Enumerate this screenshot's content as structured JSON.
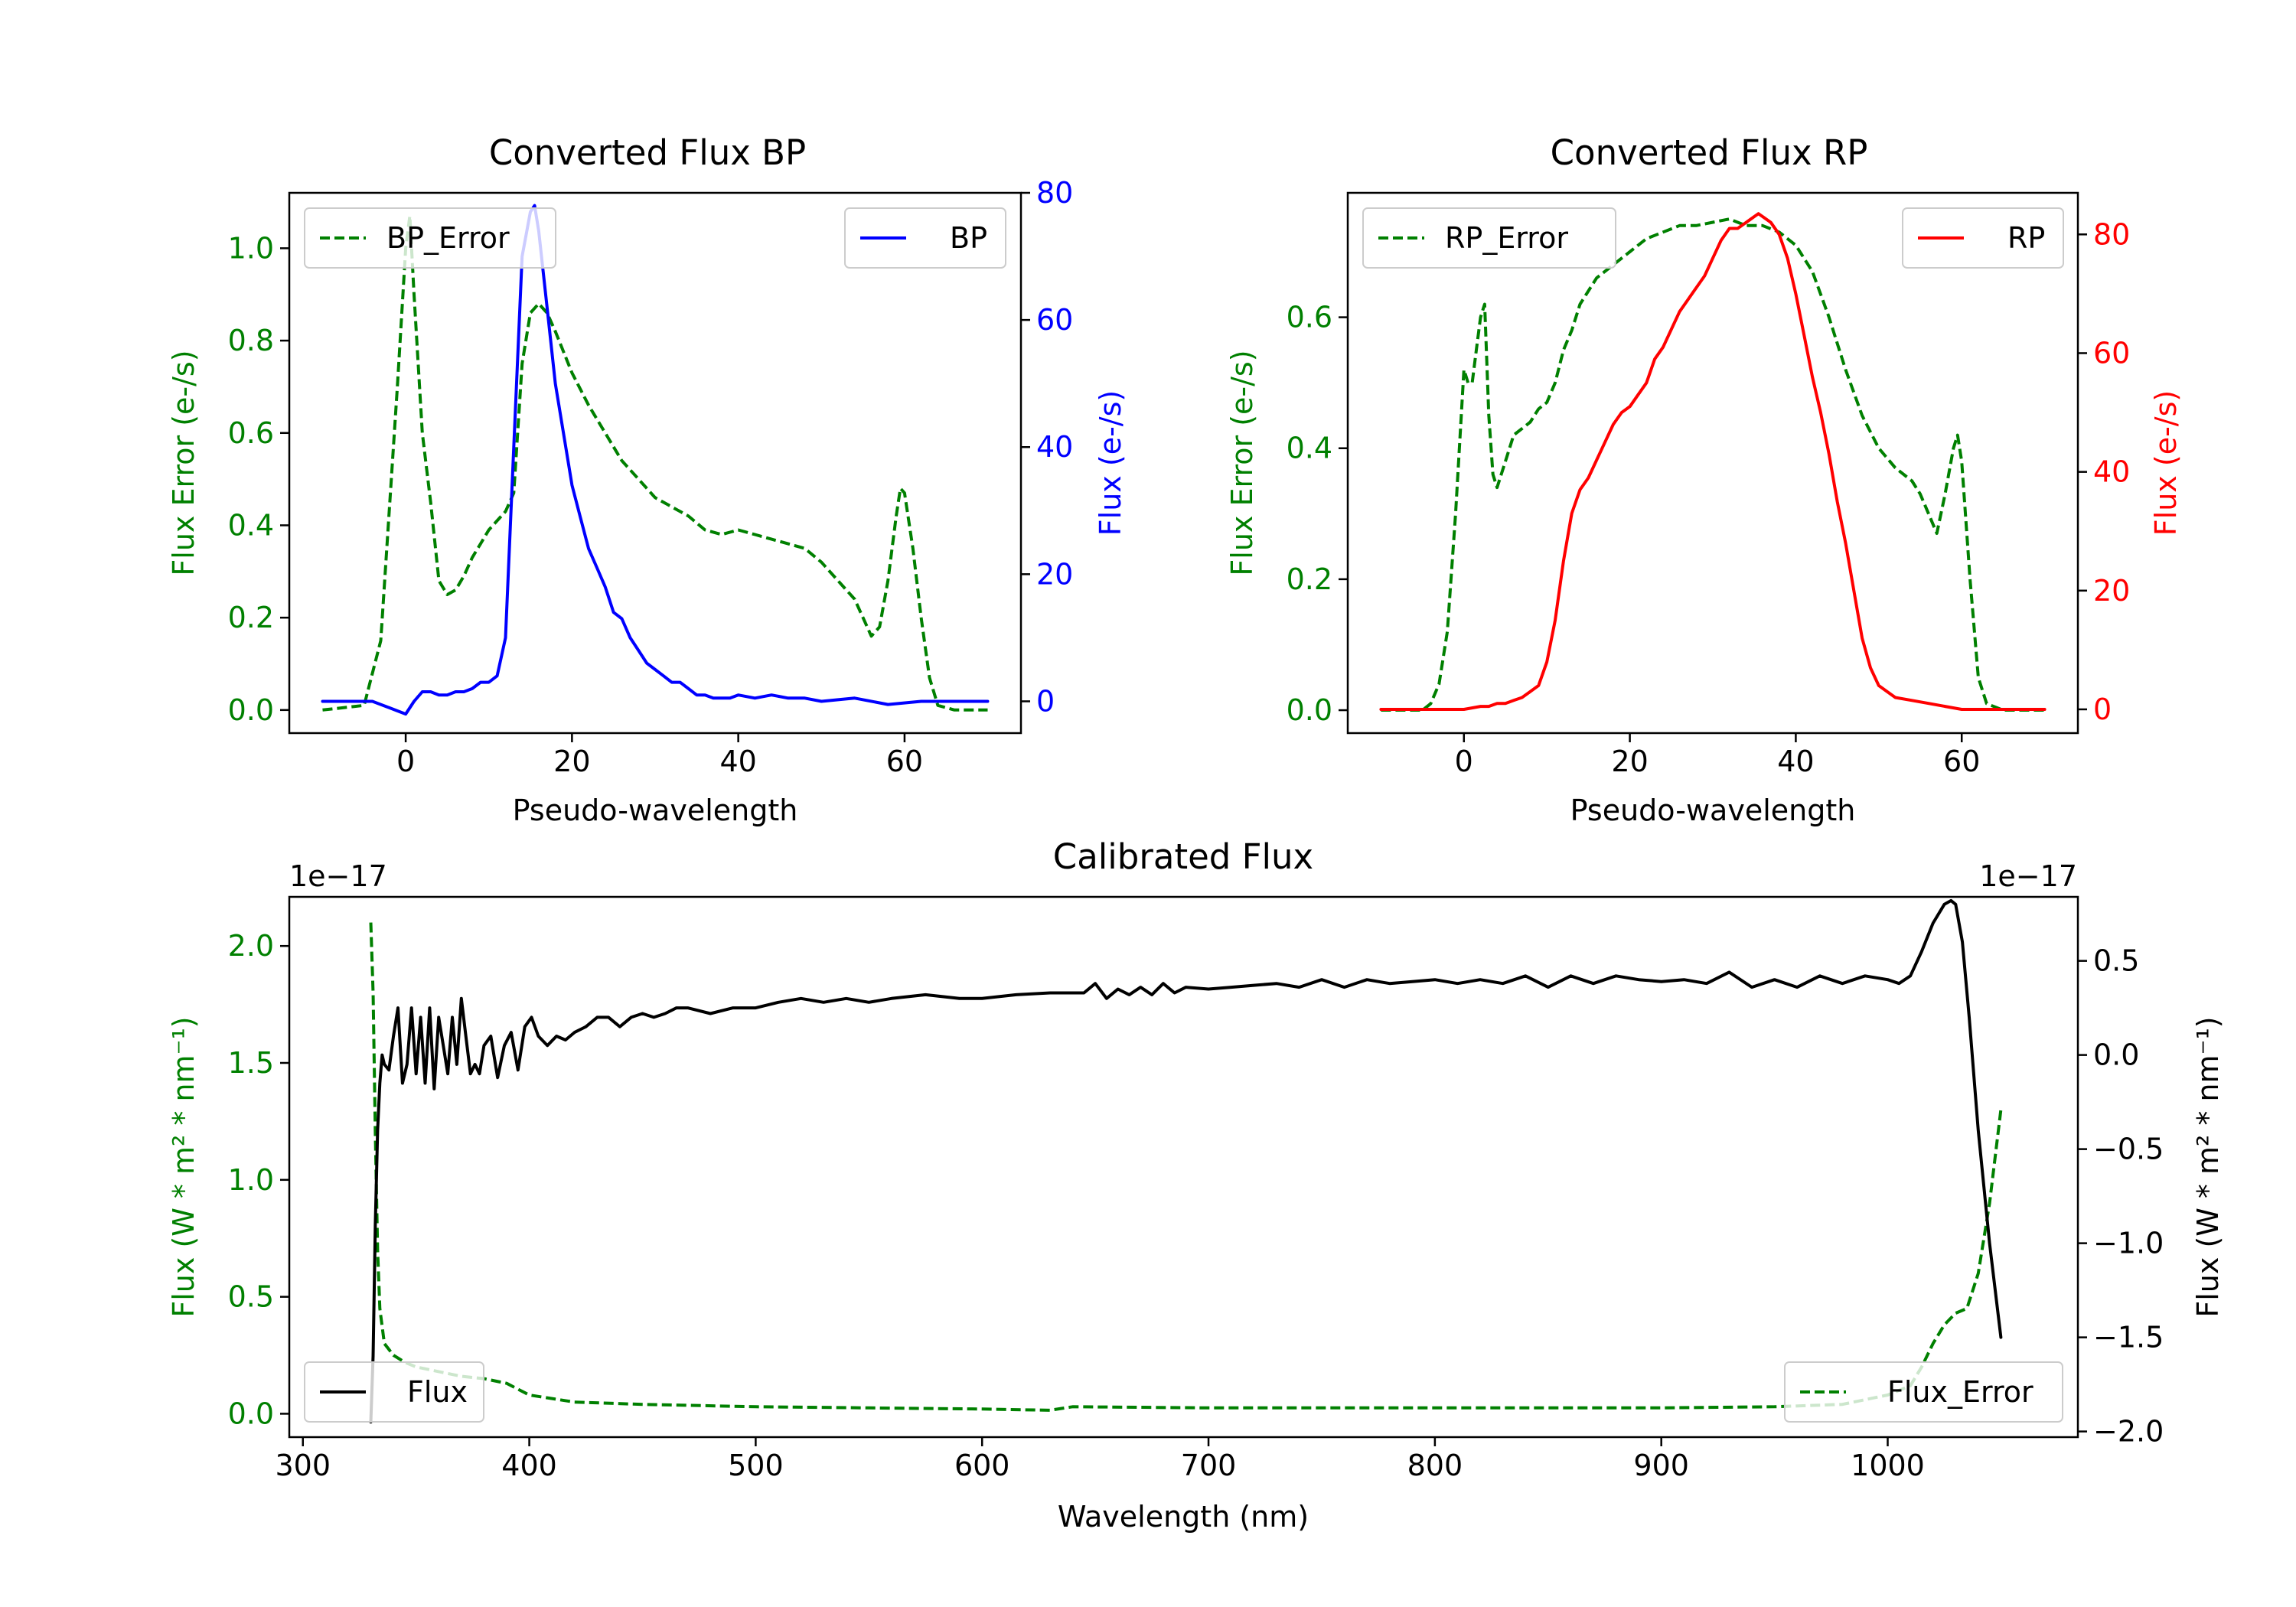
{
  "colors": {
    "bp": "#0000ff",
    "rp": "#ff0000",
    "error": "#008000",
    "flux": "#000000",
    "axis": "#000000"
  },
  "chart_data": [
    {
      "type": "line",
      "title": "Converted Flux BP",
      "xlabel": "Pseudo-wavelength",
      "ylabel_left": "Flux Error (e-/s)",
      "ylabel_right": "Flux (e-/s)",
      "xlim": [
        -14,
        74
      ],
      "ylim_left": [
        -0.05,
        1.12
      ],
      "ylim_right": [
        -5,
        80
      ],
      "xticks": [
        0,
        20,
        40,
        60
      ],
      "xtick_labels": [
        "0",
        "20",
        "40",
        "60"
      ],
      "yticks_left": [
        0.0,
        0.2,
        0.4,
        0.6,
        0.8,
        1.0
      ],
      "ytick_labels_left": [
        "0.0",
        "0.2",
        "0.4",
        "0.6",
        "0.8",
        "1.0"
      ],
      "yticks_right": [
        0,
        20,
        40,
        60,
        80
      ],
      "ytick_labels_right": [
        "0",
        "20",
        "40",
        "60",
        "80"
      ],
      "legend_left": {
        "label": "BP_Error",
        "position": "upper-left"
      },
      "legend_right": {
        "label": "BP",
        "position": "upper-right"
      },
      "series": [
        {
          "name": "BP_Error",
          "axis": "left",
          "style": "dashed",
          "color": "#008000",
          "x": [
            -10,
            -5,
            -3,
            -1,
            0,
            0.5,
            1,
            2,
            3,
            4,
            5,
            6,
            7,
            8,
            9,
            10,
            11,
            12,
            13,
            14,
            15,
            16,
            17,
            18,
            20,
            22,
            24,
            26,
            28,
            30,
            32,
            34,
            36,
            38,
            40,
            42,
            44,
            46,
            48,
            50,
            52,
            54,
            55,
            56,
            57,
            58,
            59,
            59.5,
            60,
            61,
            62,
            63,
            64,
            66,
            70
          ],
          "y": [
            0.0,
            0.01,
            0.15,
            0.7,
            1.0,
            1.07,
            0.9,
            0.6,
            0.45,
            0.28,
            0.25,
            0.26,
            0.29,
            0.33,
            0.36,
            0.39,
            0.41,
            0.43,
            0.47,
            0.75,
            0.86,
            0.88,
            0.86,
            0.82,
            0.73,
            0.66,
            0.6,
            0.54,
            0.5,
            0.46,
            0.44,
            0.42,
            0.39,
            0.38,
            0.39,
            0.38,
            0.37,
            0.36,
            0.35,
            0.32,
            0.28,
            0.24,
            0.2,
            0.16,
            0.18,
            0.28,
            0.42,
            0.48,
            0.47,
            0.35,
            0.2,
            0.07,
            0.01,
            0.0,
            0.0
          ]
        },
        {
          "name": "BP",
          "axis": "right",
          "style": "solid",
          "color": "#0000ff",
          "x": [
            -10,
            -6,
            -4,
            -2,
            0,
            1,
            2,
            3,
            4,
            5,
            6,
            7,
            8,
            9,
            10,
            11,
            12,
            13,
            14,
            15,
            15.5,
            16,
            17,
            18,
            19,
            20,
            21,
            22,
            23,
            24,
            25,
            26,
            27,
            28,
            29,
            30,
            31,
            32,
            33,
            34,
            35,
            36,
            37,
            38,
            39,
            40,
            42,
            44,
            46,
            48,
            50,
            54,
            58,
            62,
            66,
            70
          ],
          "y": [
            0,
            0,
            0,
            -1,
            -2,
            0,
            1.5,
            1.5,
            1,
            1,
            1.5,
            1.5,
            2,
            3,
            3,
            4,
            10,
            40,
            70,
            77,
            78,
            74,
            62,
            50,
            42,
            34,
            29,
            24,
            21,
            18,
            14,
            13,
            10,
            8,
            6,
            5,
            4,
            3,
            3,
            2,
            1,
            1,
            0.5,
            0.5,
            0.5,
            1,
            0.5,
            1,
            0.5,
            0.5,
            0,
            0.5,
            -0.5,
            0,
            0,
            0
          ]
        }
      ]
    },
    {
      "type": "line",
      "title": "Converted Flux RP",
      "xlabel": "Pseudo-wavelength",
      "ylabel_left": "Flux Error (e-/s)",
      "ylabel_right": "Flux (e-/s)",
      "xlim": [
        -14,
        74
      ],
      "ylim_left": [
        -0.035,
        0.79
      ],
      "ylim_right": [
        -4,
        87
      ],
      "xticks": [
        0,
        20,
        40,
        60
      ],
      "xtick_labels": [
        "0",
        "20",
        "40",
        "60"
      ],
      "yticks_left": [
        0.0,
        0.2,
        0.4,
        0.6
      ],
      "ytick_labels_left": [
        "0.0",
        "0.2",
        "0.4",
        "0.6"
      ],
      "yticks_right": [
        0,
        20,
        40,
        60,
        80
      ],
      "ytick_labels_right": [
        "0",
        "20",
        "40",
        "60",
        "80"
      ],
      "legend_left": {
        "label": "RP_Error",
        "position": "upper-left"
      },
      "legend_right": {
        "label": "RP",
        "position": "upper-right"
      },
      "series": [
        {
          "name": "RP_Error",
          "axis": "left",
          "style": "dashed",
          "color": "#008000",
          "x": [
            -10,
            -5,
            -4,
            -3,
            -2,
            -1,
            0,
            0.5,
            1,
            1.5,
            2,
            2.5,
            3,
            3.5,
            4,
            5,
            6,
            7,
            8,
            9,
            10,
            11,
            12,
            13,
            14,
            16,
            18,
            20,
            22,
            24,
            26,
            28,
            30,
            32,
            34,
            36,
            38,
            40,
            42,
            44,
            46,
            48,
            50,
            52,
            54,
            55,
            56,
            57,
            58,
            59,
            59.5,
            60,
            61,
            62,
            63,
            65,
            70
          ],
          "y": [
            0.0,
            0.0,
            0.01,
            0.04,
            0.12,
            0.3,
            0.52,
            0.5,
            0.5,
            0.55,
            0.6,
            0.62,
            0.45,
            0.36,
            0.34,
            0.38,
            0.42,
            0.43,
            0.44,
            0.46,
            0.47,
            0.5,
            0.55,
            0.58,
            0.62,
            0.66,
            0.68,
            0.7,
            0.72,
            0.73,
            0.74,
            0.74,
            0.745,
            0.75,
            0.74,
            0.74,
            0.73,
            0.71,
            0.67,
            0.6,
            0.52,
            0.45,
            0.4,
            0.37,
            0.35,
            0.33,
            0.3,
            0.27,
            0.33,
            0.4,
            0.42,
            0.38,
            0.2,
            0.05,
            0.01,
            0.0,
            0.0
          ]
        },
        {
          "name": "RP",
          "axis": "right",
          "style": "solid",
          "color": "#ff0000",
          "x": [
            -10,
            -5,
            0,
            2,
            3,
            4,
            5,
            6,
            7,
            8,
            9,
            10,
            11,
            12,
            13,
            14,
            15,
            16,
            17,
            18,
            19,
            20,
            21,
            22,
            23,
            24,
            25,
            26,
            27,
            28,
            29,
            30,
            31,
            32,
            33,
            34,
            35,
            35.5,
            36,
            37,
            38,
            39,
            40,
            41,
            42,
            43,
            44,
            45,
            46,
            47,
            48,
            49,
            50,
            51,
            52,
            54,
            56,
            58,
            60,
            62,
            64,
            66,
            70
          ],
          "y": [
            0,
            0,
            0,
            0.5,
            0.5,
            1,
            1,
            1.5,
            2,
            3,
            4,
            8,
            15,
            25,
            33,
            37,
            39,
            42,
            45,
            48,
            50,
            51,
            53,
            55,
            59,
            61,
            64,
            67,
            69,
            71,
            73,
            76,
            79,
            81,
            81,
            82,
            83,
            83.5,
            83,
            82,
            80,
            76,
            70,
            63,
            56,
            50,
            43,
            35,
            28,
            20,
            12,
            7,
            4,
            3,
            2,
            1.5,
            1,
            0.5,
            0,
            0,
            0,
            0,
            0
          ]
        }
      ]
    },
    {
      "type": "line",
      "title": "Calibrated Flux",
      "xlabel": "Wavelength (nm)",
      "ylabel_left": "Flux (W * m² * nm⁻¹)",
      "ylabel_right": "Flux (W * m² * nm⁻¹)",
      "offset_left": "1e−17",
      "offset_right": "1e−17",
      "xlim": [
        294,
        1084
      ],
      "ylim_left": [
        -0.1,
        2.21
      ],
      "ylim_right": [
        -2.03,
        0.84
      ],
      "xticks": [
        300,
        400,
        500,
        600,
        700,
        800,
        900,
        1000
      ],
      "xtick_labels": [
        "300",
        "400",
        "500",
        "600",
        "700",
        "800",
        "900",
        "1000"
      ],
      "yticks_left": [
        0.0,
        0.5,
        1.0,
        1.5,
        2.0
      ],
      "ytick_labels_left": [
        "0.0",
        "0.5",
        "1.0",
        "1.5",
        "2.0"
      ],
      "yticks_right": [
        0.5,
        0.0,
        -0.5,
        -1.0,
        -1.5,
        -2.0
      ],
      "ytick_labels_right": [
        "0.5",
        "0.0",
        "−0.5",
        "−1.0",
        "−1.5",
        "−2.0"
      ],
      "legend_left": {
        "label": "Flux",
        "position": "lower-left"
      },
      "legend_right": {
        "label": "Flux_Error",
        "position": "lower-right"
      },
      "series": [
        {
          "name": "Flux_Error",
          "axis": "left",
          "style": "dashed",
          "color": "#008000",
          "x": [
            330,
            331,
            332,
            333,
            334,
            336,
            340,
            345,
            350,
            360,
            370,
            380,
            390,
            400,
            420,
            450,
            500,
            550,
            600,
            630,
            640,
            700,
            800,
            900,
            950,
            980,
            1000,
            1010,
            1015,
            1020,
            1025,
            1030,
            1035,
            1040,
            1045,
            1050
          ],
          "y": [
            2.1,
            1.8,
            1.2,
            0.7,
            0.45,
            0.3,
            0.25,
            0.22,
            0.2,
            0.18,
            0.16,
            0.15,
            0.13,
            0.08,
            0.05,
            0.04,
            0.03,
            0.025,
            0.02,
            0.015,
            0.03,
            0.025,
            0.025,
            0.025,
            0.03,
            0.04,
            0.08,
            0.12,
            0.2,
            0.3,
            0.38,
            0.43,
            0.45,
            0.6,
            0.9,
            1.3
          ]
        },
        {
          "name": "Flux",
          "axis": "right",
          "style": "solid",
          "color": "#000000",
          "x": [
            330,
            331,
            332,
            333,
            334,
            335,
            336,
            338,
            340,
            342,
            344,
            346,
            348,
            350,
            352,
            354,
            356,
            358,
            360,
            362,
            364,
            366,
            368,
            370,
            372,
            374,
            376,
            378,
            380,
            383,
            386,
            389,
            392,
            395,
            398,
            401,
            404,
            408,
            412,
            416,
            420,
            425,
            430,
            435,
            440,
            445,
            450,
            455,
            460,
            465,
            470,
            480,
            490,
            500,
            510,
            520,
            530,
            540,
            550,
            560,
            575,
            590,
            600,
            615,
            630,
            645,
            650,
            655,
            660,
            665,
            670,
            675,
            680,
            685,
            690,
            700,
            710,
            720,
            730,
            740,
            750,
            760,
            770,
            780,
            790,
            800,
            810,
            820,
            830,
            840,
            850,
            860,
            870,
            880,
            890,
            900,
            910,
            920,
            930,
            940,
            950,
            960,
            970,
            980,
            990,
            1000,
            1005,
            1010,
            1015,
            1020,
            1025,
            1028,
            1030,
            1033,
            1036,
            1040,
            1045,
            1050
          ],
          "y": [
            -1.95,
            -1.6,
            -0.9,
            -0.4,
            -0.15,
            0.0,
            -0.05,
            -0.08,
            0.1,
            0.25,
            -0.15,
            -0.05,
            0.25,
            -0.1,
            0.2,
            -0.15,
            0.25,
            -0.18,
            0.2,
            0.05,
            -0.1,
            0.2,
            -0.05,
            0.3,
            0.1,
            -0.1,
            -0.05,
            -0.1,
            0.05,
            0.1,
            -0.12,
            0.05,
            0.12,
            -0.08,
            0.15,
            0.2,
            0.1,
            0.05,
            0.1,
            0.08,
            0.12,
            0.15,
            0.2,
            0.2,
            0.15,
            0.2,
            0.22,
            0.2,
            0.22,
            0.25,
            0.25,
            0.22,
            0.25,
            0.25,
            0.28,
            0.3,
            0.28,
            0.3,
            0.28,
            0.3,
            0.32,
            0.3,
            0.3,
            0.32,
            0.33,
            0.33,
            0.38,
            0.3,
            0.35,
            0.32,
            0.36,
            0.32,
            0.38,
            0.33,
            0.36,
            0.35,
            0.36,
            0.37,
            0.38,
            0.36,
            0.4,
            0.36,
            0.4,
            0.38,
            0.39,
            0.4,
            0.38,
            0.4,
            0.38,
            0.42,
            0.36,
            0.42,
            0.38,
            0.42,
            0.4,
            0.39,
            0.4,
            0.38,
            0.44,
            0.36,
            0.4,
            0.36,
            0.42,
            0.38,
            0.42,
            0.4,
            0.38,
            0.42,
            0.55,
            0.7,
            0.8,
            0.82,
            0.8,
            0.6,
            0.2,
            -0.4,
            -1.0,
            -1.5
          ]
        }
      ]
    }
  ]
}
